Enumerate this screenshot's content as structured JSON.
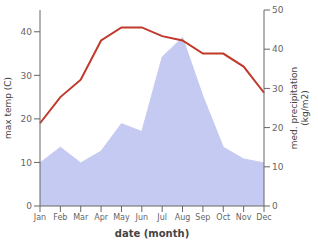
{
  "chart_data": {
    "type": "line",
    "x_label": "date (month)",
    "y_label": "max temp (C)",
    "y2_label": "med. precipitation\n(kg/m2)",
    "categories": [
      "Jan",
      "Feb",
      "Mar",
      "Apr",
      "May",
      "Jun",
      "Jul",
      "Aug",
      "Sep",
      "Oct",
      "Nov",
      "Dec"
    ],
    "series": [
      {
        "type": "area",
        "color": "#c5caf2",
        "axis": "y2",
        "values": [
          11,
          15,
          11,
          14,
          21,
          19,
          38,
          43,
          28,
          15,
          12,
          11
        ]
      },
      {
        "type": "line",
        "color": "#c0392b",
        "axis": "y",
        "values": [
          19,
          25,
          29,
          38,
          41,
          41,
          39,
          38,
          35,
          35,
          32,
          26
        ]
      }
    ],
    "ylim": [
      0,
      45
    ],
    "yticks": [
      0,
      10,
      20,
      30,
      40
    ],
    "y2lim": [
      0,
      50
    ],
    "y2ticks": [
      0,
      10,
      20,
      30,
      40,
      50
    ],
    "grid": false
  }
}
